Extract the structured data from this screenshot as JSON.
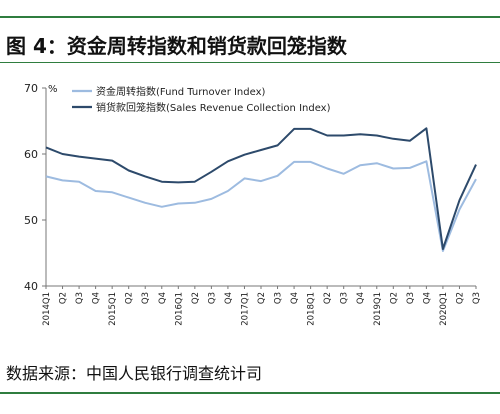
{
  "figure": {
    "title": "图 4：资金周转指数和销货款回笼指数",
    "source": "数据来源：中国人民银行调查统计司"
  },
  "colors": {
    "rule": "#2f7d3f",
    "fund": "#9dbbe0",
    "sales": "#2d4a6b",
    "axis": "#777777"
  },
  "chart_data": {
    "type": "line",
    "ylim": [
      40,
      70
    ],
    "yticks": [
      40,
      50,
      60,
      70
    ],
    "yunit": "%",
    "grid": false,
    "legend_position": "top-left",
    "x": [
      "2014Q1",
      "Q2",
      "Q3",
      "Q4",
      "2015Q1",
      "Q2",
      "Q3",
      "Q4",
      "2016Q1",
      "Q2",
      "Q3",
      "Q4",
      "2017Q1",
      "Q2",
      "Q3",
      "Q4",
      "2018Q1",
      "Q2",
      "Q3",
      "Q4",
      "2019Q1",
      "Q2",
      "Q3",
      "Q4",
      "2020Q1",
      "Q2",
      "Q3"
    ],
    "series": [
      {
        "name": "资金周转指数(Fund Turnover Index)",
        "color": "#9dbbe0",
        "values": [
          56.6,
          56.0,
          55.8,
          54.4,
          54.2,
          53.4,
          52.6,
          52.0,
          52.5,
          52.6,
          53.2,
          54.4,
          56.3,
          55.9,
          56.7,
          58.8,
          58.8,
          57.8,
          57.0,
          58.3,
          58.6,
          57.8,
          57.9,
          58.9,
          45.3,
          51.6,
          56.2
        ]
      },
      {
        "name": "销货款回笼指数(Sales Revenue Collection Index)",
        "color": "#2d4a6b",
        "values": [
          61.0,
          60.0,
          59.6,
          59.3,
          59.0,
          57.5,
          56.6,
          55.8,
          55.7,
          55.8,
          57.3,
          58.9,
          59.9,
          60.6,
          61.3,
          63.8,
          63.8,
          62.8,
          62.8,
          63.0,
          62.8,
          62.3,
          62.0,
          63.9,
          45.6,
          53.0,
          58.4
        ]
      }
    ]
  }
}
